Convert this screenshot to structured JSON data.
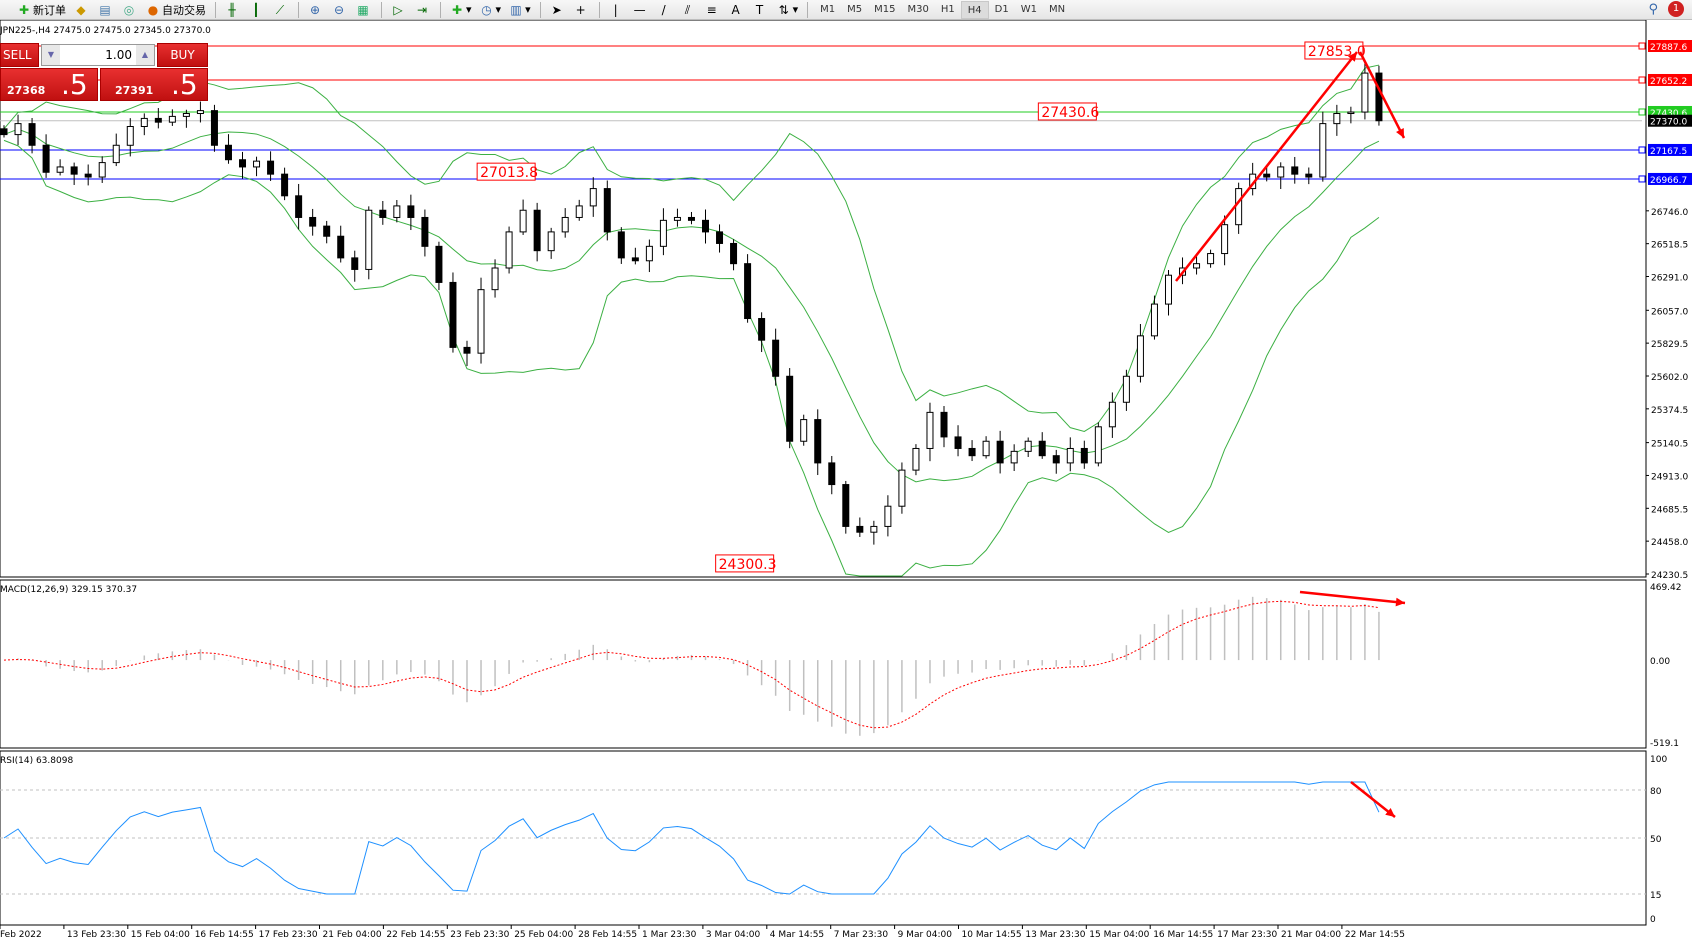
{
  "toolbar": {
    "new_order": "新订单",
    "auto_trading": "自动交易",
    "timeframes": [
      "M1",
      "M5",
      "M15",
      "M30",
      "H1",
      "H4",
      "D1",
      "W1",
      "MN"
    ],
    "active_timeframe": "H4",
    "notification_count": "1"
  },
  "symbol_info": "JPN225-,H4  27475.0 27475.0 27345.0 27370.0",
  "trade_panel": {
    "sell_label": "SELL",
    "buy_label": "BUY",
    "lot": "1.00",
    "sell_price_main": "27368",
    "sell_price_frac": ".5",
    "buy_price_main": "27391",
    "buy_price_frac": ".5"
  },
  "colors": {
    "bull": "#ffffff",
    "bear": "#000000",
    "bands": "#3cb043",
    "resistance": "#ff0000",
    "support_green": "#22cc22",
    "support_blue": "#0000ff",
    "macd_signal": "#ff0000",
    "macd_hist": "#c0c0c0",
    "rsi": "#1e90ff",
    "arrow": "#ff0000"
  },
  "chart_data": [
    {
      "type": "candlestick",
      "pane": "main",
      "indicator": "Bollinger Bands",
      "closes": [
        27274,
        27350,
        27200,
        27013,
        27050,
        27000,
        26980,
        27080,
        27200,
        27330,
        27386,
        27360,
        27400,
        27420,
        27440,
        27200,
        27100,
        27050,
        27090,
        27000,
        26850,
        26700,
        26640,
        26570,
        26420,
        26340,
        26750,
        26700,
        26780,
        26700,
        26500,
        26250,
        25800,
        25760,
        26200,
        26350,
        26600,
        26750,
        26470,
        26600,
        26700,
        26780,
        26900,
        26600,
        26420,
        26400,
        26500,
        26680,
        26700,
        26680,
        26600,
        26520,
        26380,
        26000,
        25850,
        25600,
        25150,
        25300,
        25000,
        24850,
        24560,
        24520,
        24560,
        24700,
        24950,
        25100,
        25350,
        25180,
        25100,
        25050,
        25150,
        25000,
        25080,
        25150,
        25050,
        25000,
        25100,
        25000,
        25250,
        25420,
        25600,
        25880,
        26100,
        26300,
        26350,
        26380,
        26450,
        26650,
        26900,
        27000,
        26980,
        27050,
        27000,
        26980,
        27350,
        27420,
        27430,
        27700,
        27370
      ],
      "ylim": [
        24230.5,
        27887.6
      ],
      "y_ticks": [
        "26746.0",
        "26518.5",
        "26291.0",
        "26057.0",
        "25829.5",
        "25602.0",
        "25374.5",
        "25140.5",
        "24913.0",
        "24685.5",
        "24458.0",
        "24230.5"
      ],
      "x_ticks": [
        "Feb 2022",
        "13 Feb 23:30",
        "15 Feb 04:00",
        "16 Feb 14:55",
        "17 Feb 23:30",
        "21 Feb 04:00",
        "22 Feb 14:55",
        "23 Feb 23:30",
        "25 Feb 04:00",
        "28 Feb 14:55",
        "1 Mar 23:30",
        "3 Mar 04:00",
        "4 Mar 14:55",
        "7 Mar 23:30",
        "9 Mar 04:00",
        "10 Mar 14:55",
        "13 Mar 23:30",
        "15 Mar 04:00",
        "16 Mar 14:55",
        "17 Mar 23:30",
        "21 Mar 04:00",
        "22 Mar 14:55"
      ],
      "hlines": [
        {
          "value": 27887.6,
          "label": "27887.6",
          "color": "#ff0000"
        },
        {
          "value": 27652.2,
          "label": "27652.2",
          "color": "#ff0000"
        },
        {
          "value": 27430.6,
          "label": "27430.6",
          "color": "#22cc22"
        },
        {
          "value": 27370.0,
          "label": "27370.0",
          "color": "#000000"
        },
        {
          "value": 27167.5,
          "label": "27167.5",
          "color": "#0000ff"
        },
        {
          "value": 26966.7,
          "label": "26966.7",
          "color": "#0000ff"
        }
      ],
      "annotations": [
        {
          "text": "27853.0",
          "index": 97,
          "value": 27853.0
        },
        {
          "text": "27430.6",
          "index": 78,
          "value": 27430.6
        },
        {
          "text": "27013.8",
          "index": 38,
          "value": 27013.8
        },
        {
          "text": "24300.3",
          "index": 55,
          "value": 24300.3
        }
      ]
    },
    {
      "type": "histogram+line",
      "pane": "macd",
      "title": "MACD(12,26,9) 329.15 370.37",
      "ylim": [
        -519.1,
        469.42
      ],
      "y_ticks": [
        "469.42",
        "0.00",
        "-519.1"
      ]
    },
    {
      "type": "line",
      "pane": "rsi",
      "title": "RSI(14) 63.8098",
      "ylim": [
        0,
        100
      ],
      "levels": [
        80,
        50,
        15
      ],
      "y_ticks": [
        "100",
        "80",
        "50",
        "15",
        "0"
      ]
    }
  ]
}
